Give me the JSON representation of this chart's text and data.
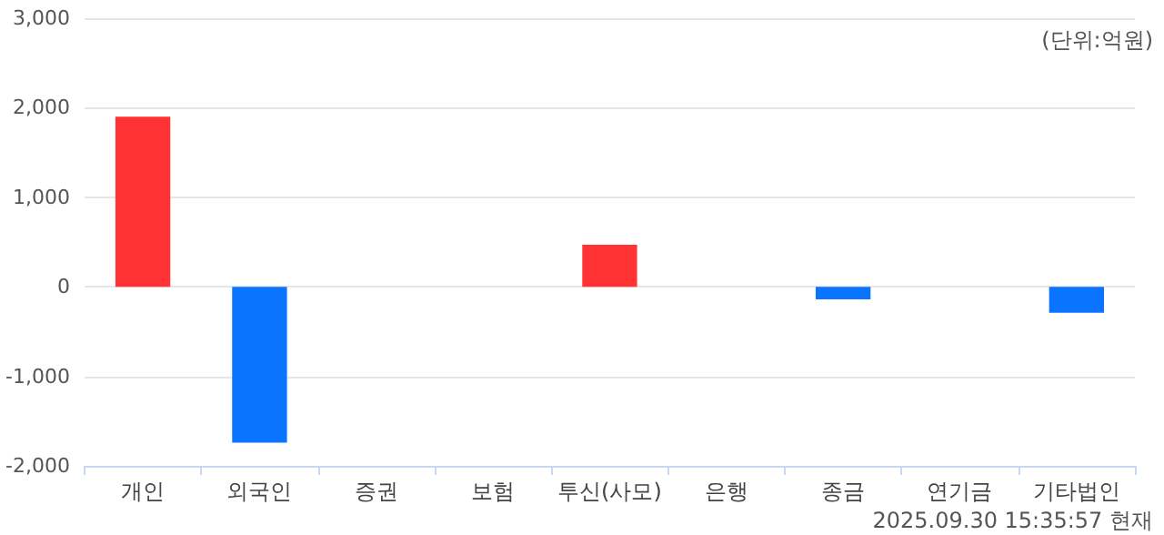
{
  "chart_data": {
    "type": "bar",
    "categories": [
      "개인",
      "외국인",
      "증권",
      "보험",
      "투신(사모)",
      "은행",
      "종금",
      "연기금",
      "기타법인"
    ],
    "values": [
      1900,
      -1740,
      0,
      0,
      470,
      0,
      -140,
      0,
      -290
    ],
    "colors": [
      "#ff3333",
      "#0a74ff",
      "#ff3333",
      "#ff3333",
      "#ff3333",
      "#ff3333",
      "#0a74ff",
      "#ff3333",
      "#0a74ff"
    ],
    "ylim": [
      -2000,
      3000
    ],
    "yticks": [
      {
        "value": -2000,
        "label": "-2,000"
      },
      {
        "value": -1000,
        "label": "-1,000"
      },
      0,
      {
        "value": 1000,
        "label": "1,000"
      },
      {
        "value": 2000,
        "label": "2,000"
      },
      {
        "value": 3000,
        "label": "3,000"
      }
    ],
    "grid": "y",
    "annotations": [
      "(단위:억원)",
      "2025.09.30 15:35:57 현재"
    ]
  }
}
